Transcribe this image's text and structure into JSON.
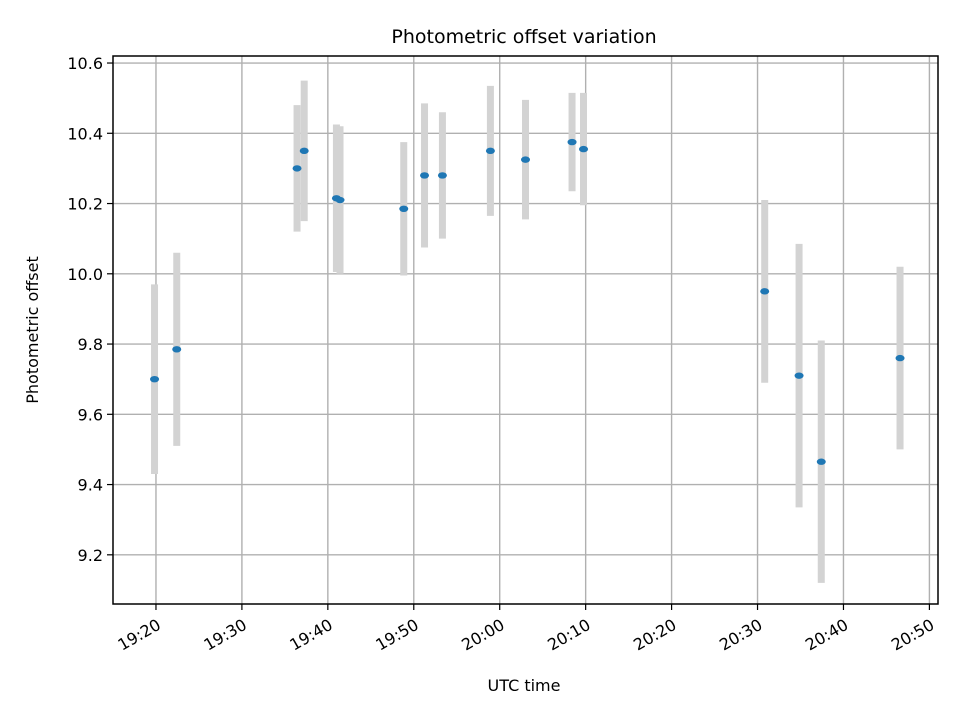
{
  "chart_data": {
    "type": "scatter",
    "title": "Photometric offset variation",
    "xlabel": "UTC time",
    "ylabel": "Photometric offset",
    "grid": true,
    "x_unit": "UTC time of day",
    "xlim": [
      "19:15",
      "20:51"
    ],
    "ylim": [
      9.06,
      10.62
    ],
    "x_ticks": [
      "19:20",
      "19:30",
      "19:40",
      "19:50",
      "20:00",
      "20:10",
      "20:20",
      "20:30",
      "20:40",
      "20:50"
    ],
    "y_ticks": [
      "9.2",
      "9.4",
      "9.6",
      "9.8",
      "10.0",
      "10.2",
      "10.4",
      "10.6"
    ],
    "point_color": "#1f77b4",
    "errorbar_color": "#d3d3d3",
    "points": [
      {
        "x": "19:19:50",
        "y": 9.7,
        "err": 0.27
      },
      {
        "x": "19:22:25",
        "y": 9.785,
        "err": 0.275
      },
      {
        "x": "19:36:25",
        "y": 10.3,
        "err": 0.18
      },
      {
        "x": "19:37:15",
        "y": 10.35,
        "err": 0.2
      },
      {
        "x": "19:41:00",
        "y": 10.215,
        "err": 0.21
      },
      {
        "x": "19:41:25",
        "y": 10.21,
        "err": 0.21
      },
      {
        "x": "19:48:50",
        "y": 10.185,
        "err": 0.19
      },
      {
        "x": "19:51:15",
        "y": 10.28,
        "err": 0.205
      },
      {
        "x": "19:53:20",
        "y": 10.28,
        "err": 0.18
      },
      {
        "x": "19:58:55",
        "y": 10.35,
        "err": 0.185
      },
      {
        "x": "20:03:00",
        "y": 10.325,
        "err": 0.17
      },
      {
        "x": "20:08:25",
        "y": 10.375,
        "err": 0.14
      },
      {
        "x": "20:09:45",
        "y": 10.355,
        "err": 0.16
      },
      {
        "x": "20:30:50",
        "y": 9.95,
        "err": 0.26
      },
      {
        "x": "20:34:50",
        "y": 9.71,
        "err": 0.375
      },
      {
        "x": "20:37:25",
        "y": 9.465,
        "err": 0.345
      },
      {
        "x": "20:46:35",
        "y": 9.76,
        "err": 0.26
      }
    ]
  }
}
